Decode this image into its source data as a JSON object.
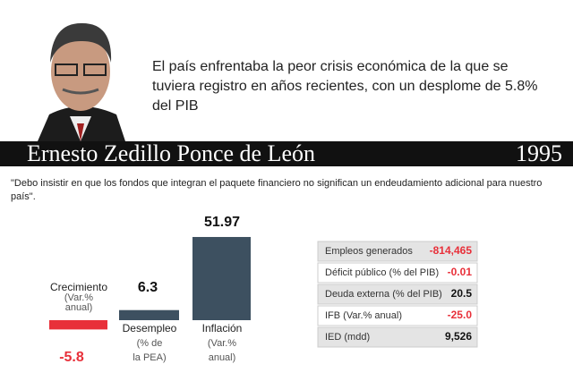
{
  "header": {
    "statement": "El país enfrentaba la peor crisis económica de la que se tuviera registro en años recientes, con un desplome de 5.8% del PIB",
    "name": "Ernesto Zedillo Ponce de León",
    "year": "1995"
  },
  "quote": "\"Debo insistir en que los fondos que integran el paquete financiero no significan un endeudamiento adicional para nuestro país\".",
  "chart": {
    "type": "bar",
    "categories": [
      [
        "Crecimiento",
        "(Var.%",
        "anual)"
      ],
      [
        "Desempleo",
        "(% de",
        "la PEA)"
      ],
      [
        "Inflación",
        "(Var.%",
        "anual)"
      ]
    ],
    "values": [
      -5.8,
      6.3,
      51.97
    ],
    "colors": [
      "#e8303a",
      "#3d5060",
      "#3d5060"
    ]
  },
  "table": {
    "rows": [
      [
        "Empleos generados",
        "-814,465"
      ],
      [
        "Déficit público (% del PIB)",
        "-0.01"
      ],
      [
        "Deuda externa (% del PIB)",
        "20.5"
      ],
      [
        "IFB (Var.% anual)",
        "-25.0"
      ],
      [
        "IED (mdd)",
        "9,526"
      ]
    ]
  }
}
